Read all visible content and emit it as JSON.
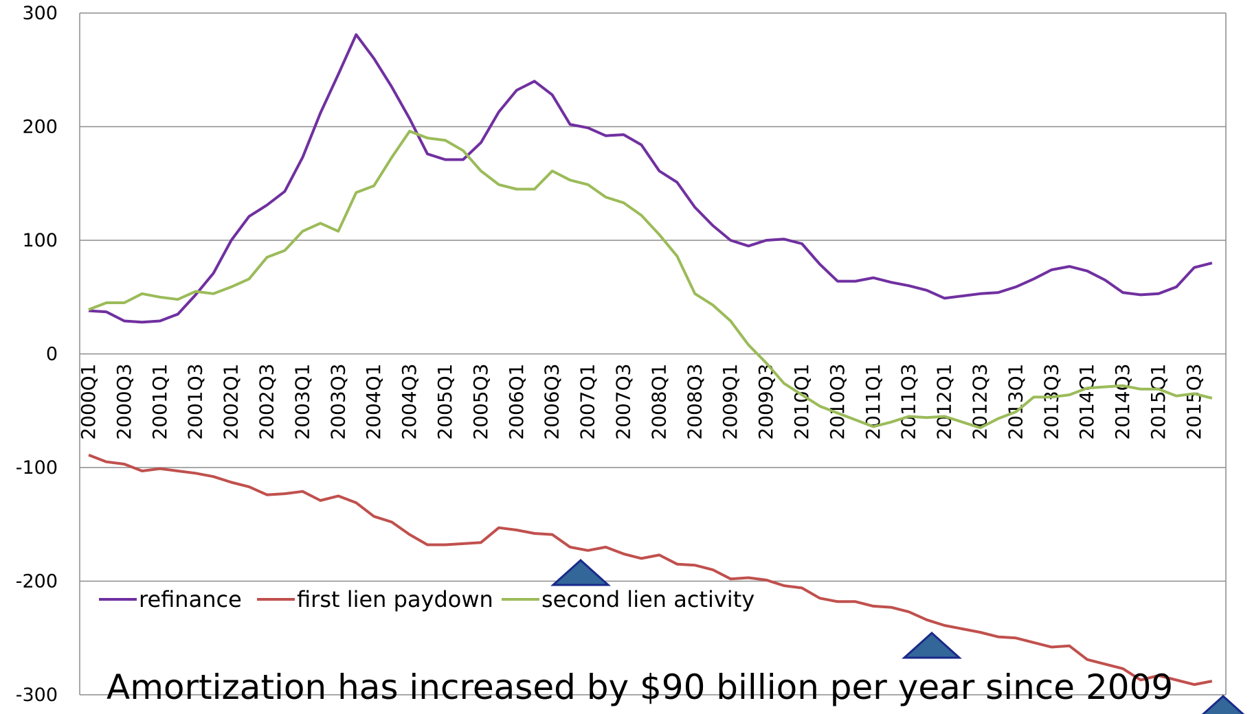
{
  "chart_data": {
    "type": "line",
    "title": "",
    "xlabel": "",
    "ylabel": "",
    "ylim": [
      -300,
      300
    ],
    "yticks": [
      300,
      200,
      100,
      0,
      -100,
      -200,
      -300
    ],
    "grid": true,
    "legend_position": "bottom-left",
    "x_tick_labels": [
      "2000Q1",
      "2000Q3",
      "2001Q1",
      "2001Q3",
      "2002Q1",
      "2002Q3",
      "2003Q1",
      "2003Q3",
      "2004Q1",
      "2004Q3",
      "2005Q1",
      "2005Q3",
      "2006Q1",
      "2006Q3",
      "2007Q1",
      "2007Q3",
      "2008Q1",
      "2008Q3",
      "2009Q1",
      "2009Q3",
      "2010Q1",
      "2010Q3",
      "2011Q1",
      "2011Q3",
      "2012Q1",
      "2012Q3",
      "2013Q1",
      "2013Q3",
      "2014Q1",
      "2014Q3",
      "2015Q1",
      "2015Q3"
    ],
    "x": [
      "2000Q1",
      "2000Q2",
      "2000Q3",
      "2000Q4",
      "2001Q1",
      "2001Q2",
      "2001Q3",
      "2001Q4",
      "2002Q1",
      "2002Q2",
      "2002Q3",
      "2002Q4",
      "2003Q1",
      "2003Q2",
      "2003Q3",
      "2003Q4",
      "2004Q1",
      "2004Q2",
      "2004Q3",
      "2004Q4",
      "2005Q1",
      "2005Q2",
      "2005Q3",
      "2005Q4",
      "2006Q1",
      "2006Q2",
      "2006Q3",
      "2006Q4",
      "2007Q1",
      "2007Q2",
      "2007Q3",
      "2007Q4",
      "2008Q1",
      "2008Q2",
      "2008Q3",
      "2008Q4",
      "2009Q1",
      "2009Q2",
      "2009Q3",
      "2009Q4",
      "2010Q1",
      "2010Q2",
      "2010Q3",
      "2010Q4",
      "2011Q1",
      "2011Q2",
      "2011Q3",
      "2011Q4",
      "2012Q1",
      "2012Q2",
      "2012Q3",
      "2012Q4",
      "2013Q1",
      "2013Q2",
      "2013Q3",
      "2013Q4",
      "2014Q1",
      "2014Q2",
      "2014Q3",
      "2014Q4",
      "2015Q1",
      "2015Q2",
      "2015Q3",
      "2015Q4"
    ],
    "series": [
      {
        "name": "refinance",
        "color": "#7030A0",
        "values": [
          38,
          37,
          29,
          28,
          29,
          35,
          52,
          71,
          100,
          121,
          131,
          143,
          173,
          212,
          246,
          281,
          260,
          235,
          207,
          176,
          171,
          171,
          186,
          213,
          232,
          240,
          228,
          202,
          199,
          192,
          193,
          184,
          161,
          151,
          129,
          113,
          100,
          95,
          100,
          101,
          97,
          79,
          64,
          64,
          67,
          63,
          60,
          56,
          49,
          51,
          53,
          54,
          59,
          66,
          74,
          77,
          73,
          65,
          54,
          52,
          53,
          59,
          76,
          80
        ]
      },
      {
        "name": "first lien paydown",
        "color": "#C0504D",
        "values": [
          -89,
          -95,
          -97,
          -103,
          -101,
          -103,
          -105,
          -108,
          -113,
          -117,
          -124,
          -123,
          -121,
          -129,
          -125,
          -131,
          -143,
          -148,
          -159,
          -168,
          -168,
          -167,
          -166,
          -153,
          -155,
          -158,
          -159,
          -170,
          -173,
          -170,
          -176,
          -180,
          -177,
          -185,
          -186,
          -190,
          -198,
          -197,
          -199,
          -204,
          -206,
          -215,
          -218,
          -218,
          -222,
          -223,
          -227,
          -234,
          -239,
          -242,
          -245,
          -249,
          -250,
          -254,
          -258,
          -257,
          -269,
          -273,
          -277,
          -287,
          -283,
          -287,
          -291,
          -288
        ]
      },
      {
        "name": "second lien activity",
        "color": "#9BBB59",
        "values": [
          39,
          45,
          45,
          53,
          50,
          48,
          55,
          53,
          59,
          66,
          85,
          91,
          108,
          115,
          108,
          142,
          148,
          173,
          196,
          190,
          188,
          179,
          161,
          149,
          145,
          145,
          161,
          153,
          149,
          138,
          133,
          122,
          105,
          86,
          53,
          43,
          29,
          8,
          -8,
          -26,
          -36,
          -46,
          -52,
          -58,
          -64,
          -60,
          -55,
          -56,
          -55,
          -60,
          -65,
          -57,
          -51,
          -38,
          -38,
          -36,
          -30,
          -29,
          -28,
          -31,
          -31,
          -37,
          -35,
          -39
        ]
      }
    ],
    "annotation": "Amortization has increased by $90 billion per year since 2009",
    "marker_color": "#336699",
    "marker_stroke": "#1A2A8A"
  }
}
